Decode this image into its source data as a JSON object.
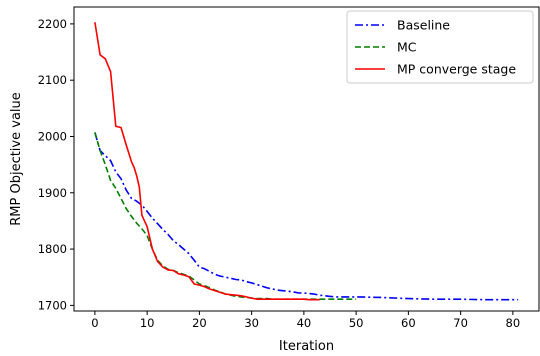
{
  "chart_data": {
    "type": "line",
    "title": "",
    "xlabel": "Iteration",
    "ylabel": "RMP Objective value",
    "xlim": [
      -4,
      85
    ],
    "ylim": [
      1690,
      2230
    ],
    "xticks": [
      0,
      10,
      20,
      30,
      40,
      50,
      60,
      70,
      80
    ],
    "yticks": [
      1700,
      1800,
      1900,
      2000,
      2100,
      2200
    ],
    "grid": false,
    "legend_position": "top-right",
    "series": [
      {
        "name": "Baseline",
        "color": "#0000ff",
        "line_style": "dash-dot",
        "x": [
          0,
          1,
          2,
          3,
          4,
          5,
          6,
          7,
          8,
          9,
          10,
          11,
          12,
          13,
          14,
          15,
          16,
          17,
          18,
          19,
          20,
          21,
          22,
          23,
          24,
          25,
          26,
          27,
          28,
          29,
          30,
          31,
          32,
          33,
          34,
          35,
          36,
          37,
          38,
          39,
          40,
          41,
          42,
          43,
          44,
          45,
          46,
          48,
          50,
          55,
          60,
          65,
          70,
          75,
          80,
          81
        ],
        "y": [
          2007,
          1975,
          1966,
          1957,
          1937,
          1925,
          1905,
          1890,
          1885,
          1878,
          1867,
          1855,
          1845,
          1835,
          1826,
          1815,
          1808,
          1800,
          1792,
          1780,
          1768,
          1765,
          1760,
          1755,
          1752,
          1750,
          1748,
          1746,
          1745,
          1742,
          1740,
          1737,
          1734,
          1731,
          1729,
          1727,
          1726,
          1725,
          1724,
          1722,
          1722,
          1721,
          1720,
          1718,
          1717,
          1716,
          1715,
          1715,
          1715,
          1714,
          1712,
          1711,
          1711,
          1710,
          1710,
          1710
        ]
      },
      {
        "name": "MC",
        "color": "#008000",
        "line_style": "dashed",
        "x": [
          0,
          1,
          2,
          3,
          4,
          5,
          6,
          7,
          8,
          9,
          10,
          11,
          12,
          13,
          14,
          15,
          16,
          17,
          18,
          19,
          20,
          21,
          22,
          23,
          24,
          25,
          26,
          27,
          28,
          29,
          30,
          31,
          32,
          33,
          34,
          35,
          36,
          37,
          38,
          39,
          40,
          41,
          42,
          43,
          44,
          45,
          46,
          47,
          48,
          49,
          50
        ],
        "y": [
          2007,
          1975,
          1950,
          1922,
          1908,
          1890,
          1872,
          1858,
          1846,
          1836,
          1824,
          1800,
          1780,
          1770,
          1764,
          1762,
          1758,
          1755,
          1752,
          1745,
          1738,
          1735,
          1731,
          1727,
          1724,
          1720,
          1718,
          1716,
          1715,
          1714,
          1713,
          1712,
          1712,
          1712,
          1711,
          1711,
          1711,
          1711,
          1711,
          1711,
          1711,
          1711,
          1711,
          1711,
          1711,
          1711,
          1711,
          1711,
          1711,
          1711,
          1711
        ]
      },
      {
        "name": "MP converge stage",
        "color": "#ff0000",
        "line_style": "solid",
        "x": [
          0,
          1,
          2,
          3,
          4,
          5,
          6,
          7,
          7.5,
          8,
          8.5,
          9,
          10,
          11,
          12,
          13,
          14,
          15,
          16,
          17,
          18,
          19,
          20,
          21,
          22,
          23,
          24,
          25,
          26,
          27,
          28,
          29,
          30,
          31,
          32,
          33,
          34,
          35,
          36,
          37,
          38,
          39,
          40,
          41,
          42,
          43
        ],
        "y": [
          2203,
          2145,
          2138,
          2115,
          2018,
          2016,
          1985,
          1955,
          1945,
          1930,
          1910,
          1860,
          1840,
          1800,
          1778,
          1768,
          1763,
          1762,
          1756,
          1754,
          1751,
          1738,
          1736,
          1733,
          1729,
          1726,
          1723,
          1720,
          1719,
          1718,
          1717,
          1715,
          1713,
          1711,
          1711,
          1711,
          1711,
          1711,
          1711,
          1711,
          1711,
          1711,
          1711,
          1710,
          1710,
          1710
        ]
      }
    ]
  }
}
